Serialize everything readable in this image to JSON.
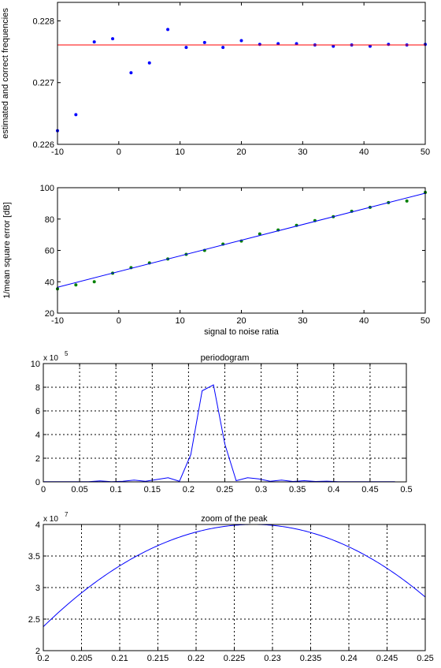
{
  "chart_data": [
    {
      "type": "scatter",
      "title": "",
      "xlabel": "",
      "ylabel": "estimated and correct frequencies",
      "xlim": [
        -10,
        50
      ],
      "ylim": [
        0.226,
        0.2283
      ],
      "grid": false,
      "xticks": [
        -10,
        0,
        10,
        20,
        30,
        40,
        50
      ],
      "yticks": [
        0.226,
        0.227,
        0.228
      ],
      "ytick_labels": [
        "0.226",
        "0.227",
        "0.228"
      ],
      "series": [
        {
          "style": "dots",
          "color": "#0000ff",
          "x": [
            -10,
            -7,
            -4,
            -1,
            2,
            5,
            8,
            11,
            14,
            17,
            20,
            23,
            26,
            29,
            32,
            35,
            38,
            41,
            44,
            47,
            50
          ],
          "y": [
            0.22622,
            0.22648,
            0.22766,
            0.22771,
            0.22716,
            0.22732,
            0.22786,
            0.22757,
            0.22765,
            0.22757,
            0.22768,
            0.22762,
            0.22763,
            0.22763,
            0.22761,
            0.22759,
            0.22761,
            0.22759,
            0.22762,
            0.22761,
            0.22762
          ]
        },
        {
          "style": "line",
          "color": "#ff0000",
          "x": [
            -10,
            50
          ],
          "y": [
            0.22761,
            0.22761
          ]
        }
      ]
    },
    {
      "type": "scatter",
      "title": "",
      "xlabel": "signal to noise ratia",
      "ylabel": "1/mean square error [dB]",
      "xlim": [
        -10,
        50
      ],
      "ylim": [
        20,
        100
      ],
      "grid": false,
      "xticks": [
        -10,
        0,
        10,
        20,
        30,
        40,
        50
      ],
      "yticks": [
        20,
        40,
        60,
        80,
        100
      ],
      "series": [
        {
          "style": "dots",
          "color": "#008000",
          "x": [
            -10,
            -7,
            -4,
            -1,
            2,
            5,
            8,
            11,
            14,
            17,
            20,
            23,
            26,
            29,
            32,
            35,
            38,
            41,
            44,
            47,
            50
          ],
          "y": [
            35.5,
            38,
            40,
            45.5,
            49,
            52,
            54.5,
            57.5,
            60,
            64,
            66,
            70.5,
            73,
            76,
            79,
            81.5,
            85,
            87.5,
            90.5,
            91.5,
            97
          ]
        },
        {
          "style": "line",
          "color": "#0000ff",
          "x": [
            -10,
            50
          ],
          "y": [
            36.5,
            96.5
          ]
        }
      ]
    },
    {
      "type": "line",
      "title": "periodogram",
      "xlabel": "",
      "ylabel": "",
      "exponent_label": "x 10",
      "exponent": "5",
      "xlim": [
        0,
        0.5
      ],
      "ylim": [
        0,
        10
      ],
      "grid": true,
      "xticks": [
        0,
        0.05,
        0.1,
        0.15,
        0.2,
        0.25,
        0.3,
        0.35,
        0.4,
        0.45,
        0.5
      ],
      "yticks": [
        0,
        2,
        4,
        6,
        8,
        10
      ],
      "series": [
        {
          "color": "#0000ff",
          "x": [
            0,
            0.0625,
            0.078125,
            0.09375,
            0.109375,
            0.125,
            0.140625,
            0.15625,
            0.171875,
            0.1875,
            0.203125,
            0.21875,
            0.234375,
            0.25,
            0.265625,
            0.28125,
            0.296875,
            0.3125,
            0.328125,
            0.34375,
            0.359375,
            0.375,
            0.390625,
            0.40625,
            0.484375
          ],
          "y": [
            0.02,
            0.02,
            0.08,
            0.02,
            0.05,
            0.15,
            0.05,
            0.2,
            0.35,
            0.05,
            2.3,
            7.7,
            8.2,
            3.2,
            0.1,
            0.35,
            0.25,
            0.05,
            0.15,
            0.03,
            0.1,
            0.03,
            0.06,
            0.02,
            0.02
          ]
        }
      ]
    },
    {
      "type": "line",
      "title": "zoom of the peak",
      "xlabel": "",
      "ylabel": "",
      "exponent_label": "x 10",
      "exponent": "7",
      "xlim": [
        0.2,
        0.25
      ],
      "ylim": [
        2,
        4
      ],
      "grid": true,
      "xticks": [
        0.2,
        0.205,
        0.21,
        0.215,
        0.22,
        0.225,
        0.23,
        0.235,
        0.24,
        0.245,
        0.25
      ],
      "yticks": [
        2,
        2.5,
        3,
        3.5,
        4
      ],
      "series": [
        {
          "color": "#0000ff",
          "curve": "parabola",
          "vertex_x": 0.2275,
          "vertex_y": 4.0,
          "x": [
            0.2,
            0.205,
            0.21,
            0.215,
            0.22,
            0.225,
            0.2275,
            0.23,
            0.235,
            0.24,
            0.245,
            0.25
          ],
          "y": [
            2.38,
            2.85,
            3.24,
            3.55,
            3.8,
            3.97,
            4.0,
            3.99,
            3.85,
            3.6,
            3.27,
            2.85
          ]
        }
      ]
    }
  ]
}
